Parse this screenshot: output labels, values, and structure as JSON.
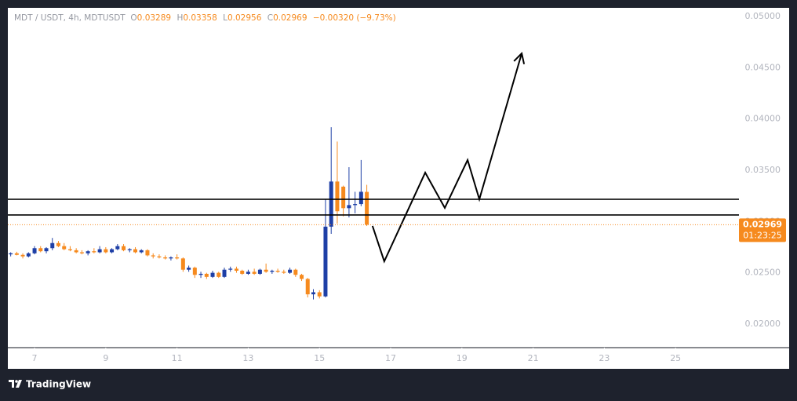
{
  "header": {
    "symbol": "MDT / USDT, 4h, MDTUSDT",
    "ohlc_labels": [
      "O",
      "H",
      "L",
      "C"
    ],
    "change": "−0.00320 (−9.73%)"
  },
  "chart_data": {
    "type": "candlestick",
    "x": [
      6.33,
      6.5,
      6.67,
      6.83,
      7,
      7.17,
      7.33,
      7.5,
      7.67,
      7.83,
      8,
      8.17,
      8.33,
      8.5,
      8.67,
      8.83,
      9,
      9.17,
      9.33,
      9.5,
      9.67,
      9.83,
      10,
      10.17,
      10.33,
      10.5,
      10.67,
      10.83,
      11,
      11.17,
      11.33,
      11.5,
      11.67,
      11.83,
      12,
      12.17,
      12.33,
      12.5,
      12.67,
      12.83,
      13,
      13.17,
      13.33,
      13.5,
      13.67,
      13.83,
      14,
      14.17,
      14.33,
      14.5,
      14.67,
      14.83,
      15,
      15.17,
      15.33,
      15.5,
      15.67,
      15.83,
      16,
      16.17,
      16.33
    ],
    "open": [
      0.0268,
      0.0269,
      0.02675,
      0.0266,
      0.0269,
      0.0274,
      0.0271,
      0.0274,
      0.0279,
      0.0276,
      0.0273,
      0.0272,
      0.027,
      0.0269,
      0.0271,
      0.027,
      0.0273,
      0.027,
      0.0273,
      0.0276,
      0.0272,
      0.0273,
      0.027,
      0.0272,
      0.0267,
      0.0266,
      0.0265,
      0.0264,
      0.0265,
      0.0264,
      0.0253,
      0.0255,
      0.0248,
      0.0249,
      0.0246,
      0.025,
      0.0246,
      0.0253,
      0.0254,
      0.0252,
      0.0249,
      0.0251,
      0.0249,
      0.0253,
      0.0251,
      0.0252,
      0.0251,
      0.025,
      0.0253,
      0.0248,
      0.0244,
      0.0229,
      0.0231,
      0.0227,
      0.0295,
      0.0339,
      0.0334,
      0.0313,
      0.0316,
      0.0317,
      0.03289
    ],
    "high": [
      0.027,
      0.02705,
      0.0269,
      0.027,
      0.0276,
      0.0276,
      0.0275,
      0.0284,
      0.0281,
      0.0279,
      0.0276,
      0.0274,
      0.0272,
      0.0272,
      0.0274,
      0.0276,
      0.0275,
      0.0274,
      0.0278,
      0.0278,
      0.0274,
      0.0275,
      0.0273,
      0.0273,
      0.0269,
      0.0268,
      0.0267,
      0.0266,
      0.0268,
      0.0265,
      0.0257,
      0.0256,
      0.0251,
      0.025,
      0.0252,
      0.0251,
      0.0255,
      0.0256,
      0.0256,
      0.0253,
      0.0253,
      0.0254,
      0.0254,
      0.0259,
      0.0253,
      0.0254,
      0.0253,
      0.0255,
      0.0254,
      0.0249,
      0.0245,
      0.0234,
      0.0233,
      0.0322,
      0.0392,
      0.0378,
      0.0335,
      0.0353,
      0.0329,
      0.036,
      0.03358
    ],
    "low": [
      0.0266,
      0.0267,
      0.0264,
      0.0265,
      0.0268,
      0.027,
      0.0269,
      0.0272,
      0.0275,
      0.0272,
      0.0271,
      0.0269,
      0.0268,
      0.0267,
      0.0269,
      0.0269,
      0.0269,
      0.0269,
      0.0272,
      0.0271,
      0.027,
      0.0269,
      0.0269,
      0.0266,
      0.0264,
      0.0264,
      0.0263,
      0.0262,
      0.0263,
      0.0251,
      0.0251,
      0.0245,
      0.0245,
      0.0244,
      0.0245,
      0.0245,
      0.0245,
      0.0251,
      0.025,
      0.0248,
      0.0248,
      0.0248,
      0.0248,
      0.025,
      0.0249,
      0.025,
      0.0249,
      0.0249,
      0.0246,
      0.0242,
      0.0226,
      0.0224,
      0.0225,
      0.0226,
      0.0288,
      0.0298,
      0.0305,
      0.0304,
      0.0308,
      0.0315,
      0.02956
    ],
    "close": [
      0.0269,
      0.02675,
      0.0266,
      0.0269,
      0.0274,
      0.0271,
      0.0274,
      0.0279,
      0.0276,
      0.0273,
      0.0272,
      0.027,
      0.0269,
      0.0271,
      0.027,
      0.0273,
      0.027,
      0.0273,
      0.0276,
      0.0272,
      0.0273,
      0.027,
      0.0272,
      0.0267,
      0.0266,
      0.0265,
      0.0264,
      0.0265,
      0.0264,
      0.0253,
      0.0255,
      0.0248,
      0.0249,
      0.0246,
      0.025,
      0.0246,
      0.0253,
      0.0254,
      0.0252,
      0.0249,
      0.0251,
      0.0249,
      0.0253,
      0.0251,
      0.0252,
      0.0251,
      0.025,
      0.0253,
      0.0248,
      0.0244,
      0.0229,
      0.0231,
      0.0227,
      0.0295,
      0.0339,
      0.031,
      0.0313,
      0.0316,
      0.0317,
      0.0329,
      0.02969
    ],
    "up_color": "#1e3fa6",
    "down_color": "#f68a1e",
    "xlim": [
      6.25,
      26.78
    ],
    "xticks": [
      7,
      9,
      11,
      13,
      15,
      17,
      19,
      21,
      23,
      25
    ],
    "ylim": [
      0.0177,
      0.05084
    ],
    "yticks": [
      {
        "value": 0.02,
        "label": "0.02000"
      },
      {
        "value": 0.025,
        "label": "0.02500"
      },
      {
        "value": 0.03,
        "label": "0.03000"
      },
      {
        "value": 0.035,
        "label": "0.03500"
      },
      {
        "value": 0.04,
        "label": "0.04000"
      },
      {
        "value": 0.045,
        "label": "0.04500"
      },
      {
        "value": 0.05,
        "label": "0.05000"
      }
    ],
    "countdown": "01:23:25",
    "levels": [
      0.03217,
      0.03064
    ],
    "projection": {
      "x": [
        16.49,
        16.82,
        17.97,
        18.52,
        19.16,
        19.49,
        20.68
      ],
      "y": [
        0.02957,
        0.02612,
        0.03477,
        0.03133,
        0.036,
        0.03217,
        0.0464
      ]
    }
  },
  "footer": {
    "brand": "TradingView"
  }
}
